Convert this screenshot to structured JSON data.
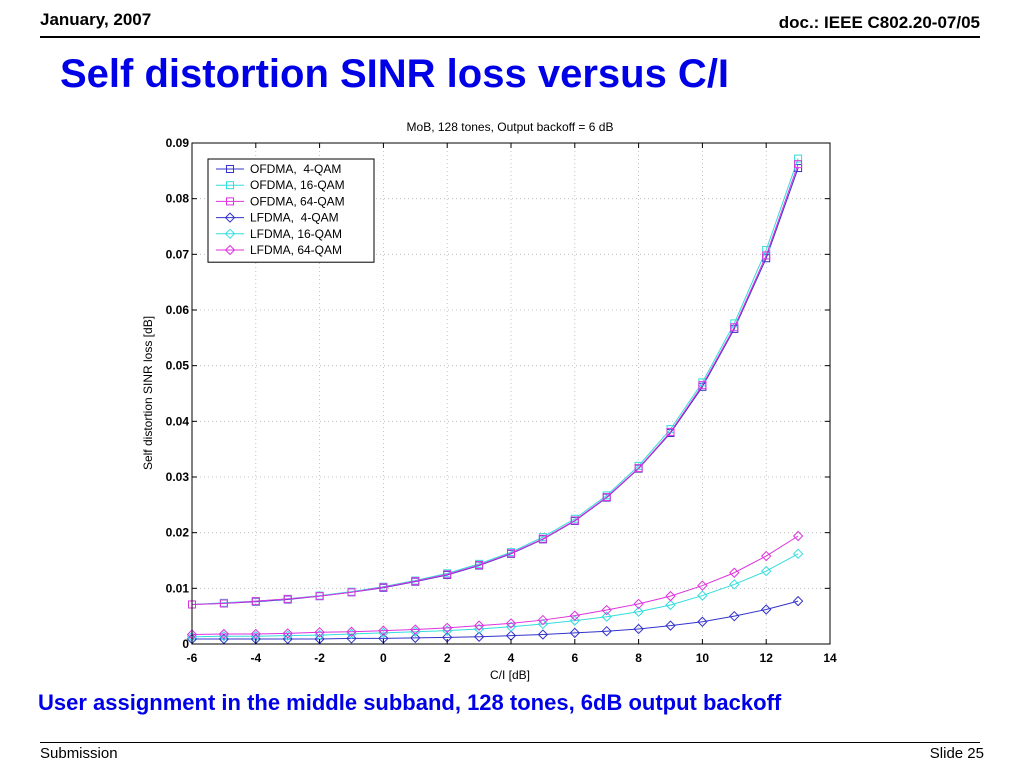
{
  "header": {
    "date": "January, 2007",
    "doc_id": "doc.: IEEE C802.20-07/05"
  },
  "slide_title": "Self distortion SINR loss versus C/I",
  "caption": "User assignment in the middle subband, 128 tones, 6dB output backoff",
  "footer": {
    "left": "Submission",
    "right": "Slide 25"
  },
  "chart_data": {
    "type": "line",
    "title": "MoB, 128 tones, Output backoff = 6 dB",
    "xlabel": "C/I [dB]",
    "ylabel": "Self distortion SINR loss [dB]",
    "xlim": [
      -6,
      14
    ],
    "ylim": [
      0,
      0.09
    ],
    "xticks": [
      -6,
      -4,
      -2,
      0,
      2,
      4,
      6,
      8,
      10,
      12,
      14
    ],
    "yticks": [
      0,
      0.01,
      0.02,
      0.03,
      0.04,
      0.05,
      0.06,
      0.07,
      0.08,
      0.09
    ],
    "ytick_labels": [
      "0",
      "0.01",
      "0.02",
      "0.03",
      "0.04",
      "0.05",
      "0.06",
      "0.07",
      "0.08",
      "0.09"
    ],
    "grid": true,
    "legend_position": "top-left",
    "x": [
      -6,
      -5,
      -4,
      -3,
      -2,
      -1,
      0,
      1,
      2,
      3,
      4,
      5,
      6,
      7,
      8,
      9,
      10,
      11,
      12,
      13
    ],
    "series": [
      {
        "name": "OFDMA,  4-QAM",
        "color": "#3333cc",
        "marker": "square",
        "values": [
          0.0071,
          0.0073,
          0.0076,
          0.008,
          0.0086,
          0.0093,
          0.0101,
          0.0112,
          0.0124,
          0.0141,
          0.0162,
          0.0188,
          0.0221,
          0.0263,
          0.0315,
          0.0379,
          0.0462,
          0.0566,
          0.0693,
          0.0855
        ]
      },
      {
        "name": "OFDMA, 16-QAM",
        "color": "#33dddd",
        "marker": "square",
        "values": [
          0.0071,
          0.0074,
          0.0077,
          0.0081,
          0.0087,
          0.0094,
          0.0103,
          0.0114,
          0.0127,
          0.0144,
          0.0165,
          0.0192,
          0.0225,
          0.0267,
          0.032,
          0.0386,
          0.047,
          0.0576,
          0.0708,
          0.0872
        ]
      },
      {
        "name": "OFDMA, 64-QAM",
        "color": "#dd33dd",
        "marker": "square",
        "values": [
          0.0071,
          0.0073,
          0.0077,
          0.0081,
          0.0086,
          0.0093,
          0.0102,
          0.0113,
          0.0125,
          0.0142,
          0.0163,
          0.0189,
          0.0222,
          0.0264,
          0.0316,
          0.0381,
          0.0465,
          0.0569,
          0.0698,
          0.0862
        ]
      },
      {
        "name": "LFDMA,  4-QAM",
        "color": "#3333cc",
        "marker": "diamond",
        "values": [
          0.0009,
          0.0009,
          0.0009,
          0.0009,
          0.0009,
          0.001,
          0.001,
          0.0011,
          0.0012,
          0.0013,
          0.0015,
          0.0017,
          0.002,
          0.0023,
          0.0027,
          0.0033,
          0.004,
          0.005,
          0.0062,
          0.0077
        ]
      },
      {
        "name": "LFDMA, 16-QAM",
        "color": "#33dddd",
        "marker": "diamond",
        "values": [
          0.0013,
          0.0014,
          0.0014,
          0.0015,
          0.0016,
          0.0018,
          0.002,
          0.0022,
          0.0024,
          0.0027,
          0.0031,
          0.0036,
          0.0042,
          0.0049,
          0.0058,
          0.007,
          0.0087,
          0.0107,
          0.0131,
          0.0162
        ]
      },
      {
        "name": "LFDMA, 64-QAM",
        "color": "#dd33dd",
        "marker": "diamond",
        "values": [
          0.0017,
          0.0018,
          0.0018,
          0.0019,
          0.0021,
          0.0022,
          0.0024,
          0.0026,
          0.0029,
          0.0033,
          0.0037,
          0.0043,
          0.0051,
          0.0061,
          0.0072,
          0.0086,
          0.0105,
          0.0128,
          0.0158,
          0.0194
        ]
      }
    ]
  }
}
